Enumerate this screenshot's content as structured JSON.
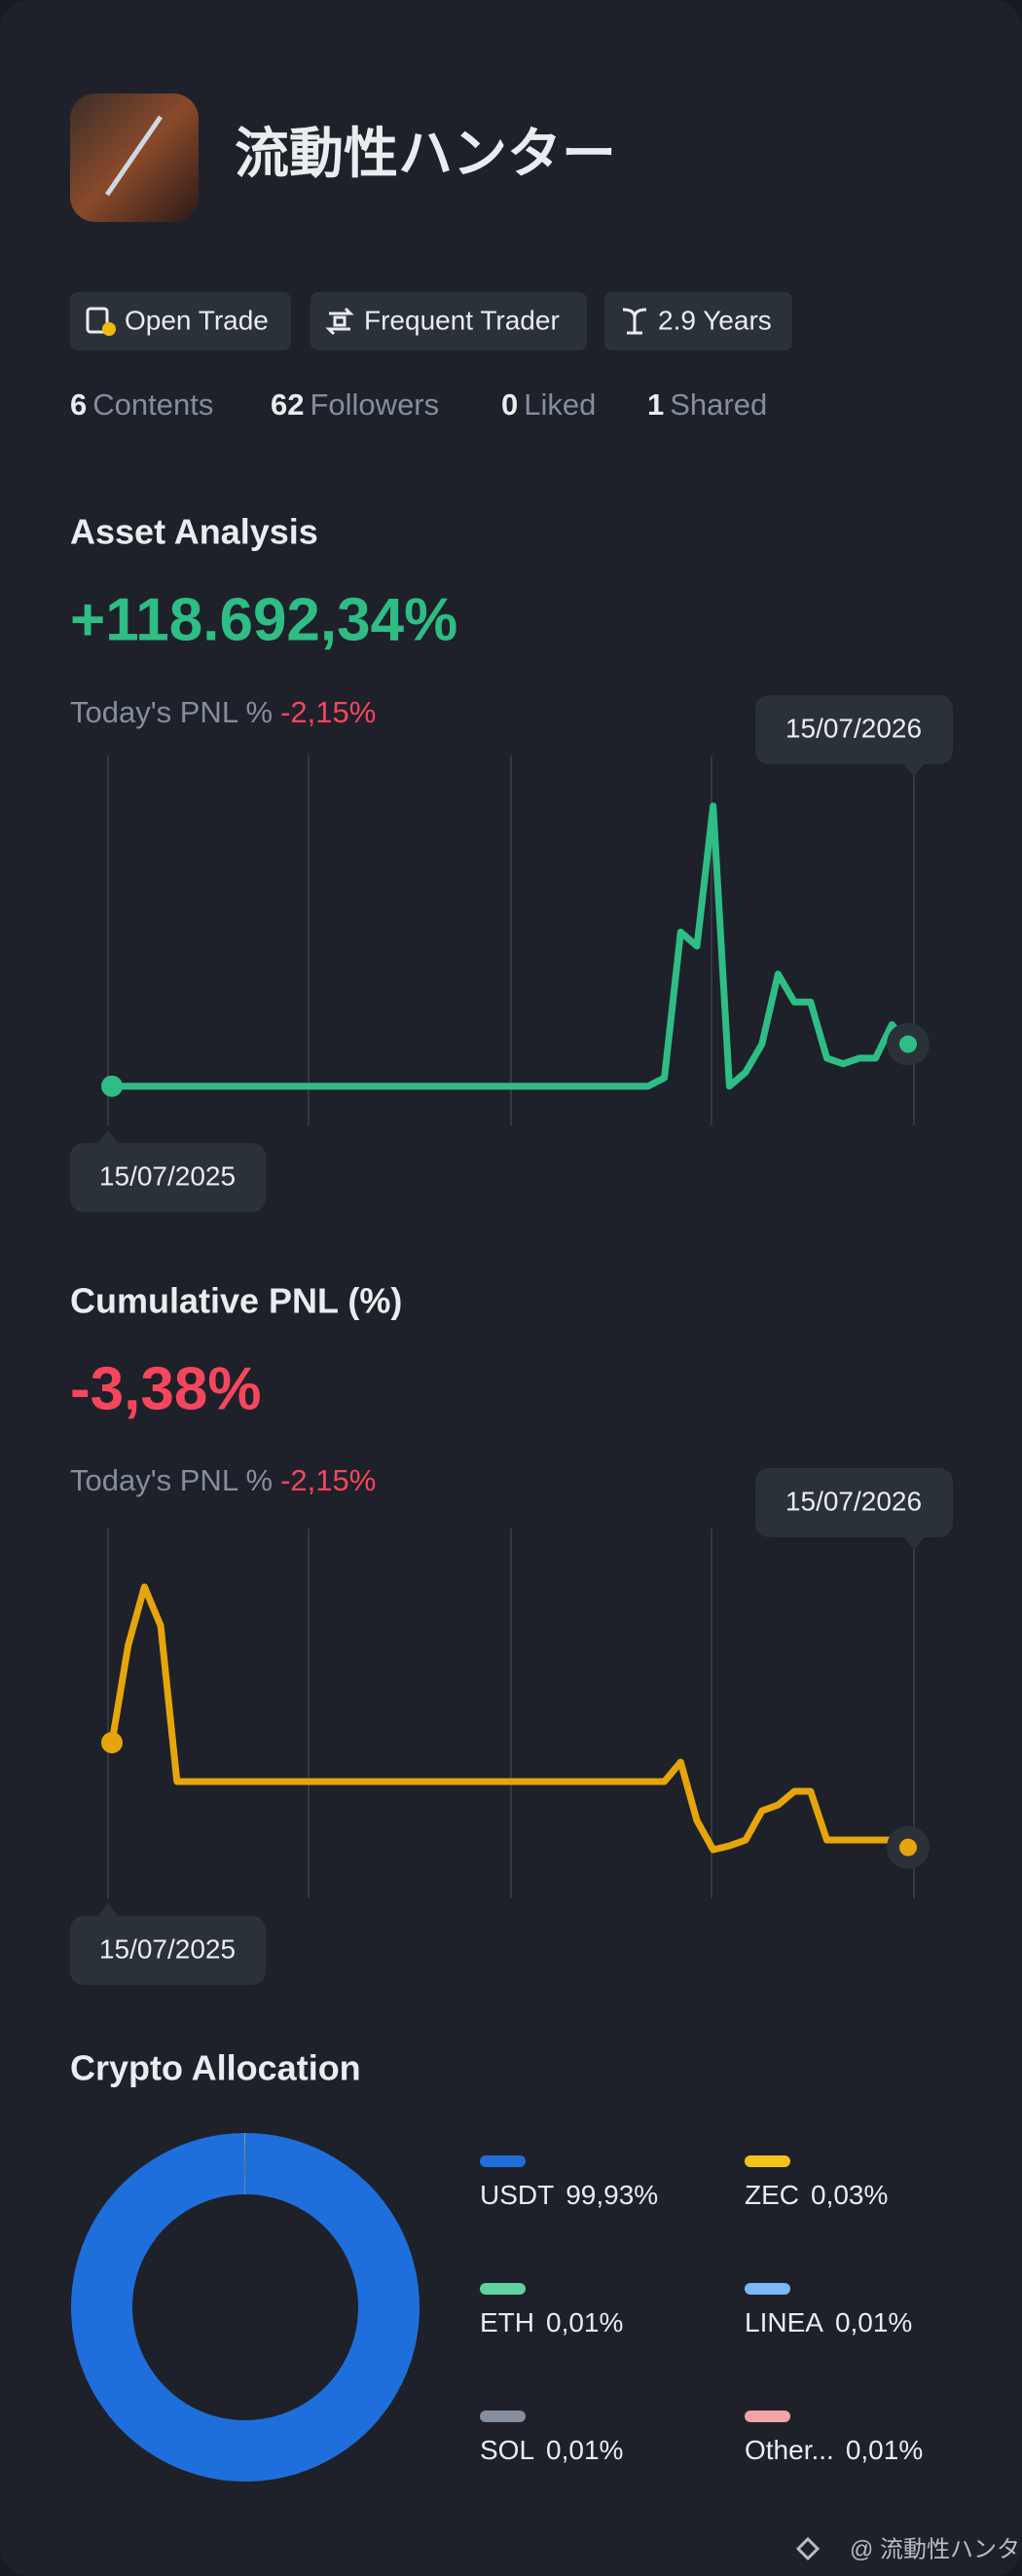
{
  "profile": {
    "name": "流動性ハンター",
    "tags": [
      "Open Trade",
      "Frequent Trader",
      "2.9 Years"
    ],
    "stats": [
      {
        "count": 6,
        "label": "Contents"
      },
      {
        "count": 62,
        "label": "Followers"
      },
      {
        "count": 0,
        "label": "Liked"
      },
      {
        "count": 1,
        "label": "Shared"
      }
    ]
  },
  "chart_data": [
    {
      "type": "line",
      "title": "Asset Analysis",
      "headline": "+118.692,34%",
      "today_label": "Today's PNL %",
      "today_value": "-2,15%",
      "start_label": "15/07/2025",
      "end_label": "15/07/2026",
      "color": "#2ebd85",
      "headline_color": "#2ebd85",
      "ylim": [
        -14,
        118
      ],
      "values": [
        0,
        0,
        0,
        0,
        0,
        0,
        0,
        0,
        0,
        0,
        0,
        0,
        0,
        0,
        0,
        0,
        0,
        0,
        0,
        0,
        0,
        0,
        0,
        0,
        0,
        0,
        0,
        0,
        0,
        0,
        0,
        0,
        0,
        0,
        3,
        55,
        50,
        100,
        0,
        5,
        15,
        40,
        30,
        30,
        10,
        8,
        10,
        10,
        22,
        15
      ]
    },
    {
      "type": "line",
      "title": "Cumulative PNL (%)",
      "headline": "-3,38%",
      "today_label": "Today's PNL %",
      "today_value": "-2,15%",
      "start_label": "15/07/2025",
      "end_label": "15/07/2026",
      "color": "#e6a50a",
      "headline_color": "#f6465d",
      "ylim": [
        -6,
        13
      ],
      "values": [
        2,
        7,
        10,
        8,
        0,
        0,
        0,
        0,
        0,
        0,
        0,
        0,
        0,
        0,
        0,
        0,
        0,
        0,
        0,
        0,
        0,
        0,
        0,
        0,
        0,
        0,
        0,
        0,
        0,
        0,
        0,
        0,
        0,
        0,
        0,
        1,
        -2,
        -3.5,
        -3.3,
        -3,
        -1.5,
        -1.2,
        -0.5,
        -0.5,
        -3,
        -3,
        -3,
        -3,
        -3,
        -3.38
      ]
    },
    {
      "type": "pie",
      "title": "Crypto Allocation",
      "categories": [
        "USDT",
        "ZEC",
        "ETH",
        "LINEA",
        "SOL",
        "Other..."
      ],
      "values": [
        99.93,
        0.03,
        0.01,
        0.01,
        0.01,
        0.01
      ],
      "value_labels": [
        "99,93%",
        "0,03%",
        "0,01%",
        "0,01%",
        "0,01%",
        "0,01%"
      ],
      "colors": [
        "#1e6fdb",
        "#f0c419",
        "#5fd3a0",
        "#7ab8f5",
        "#868e9c",
        "#f4a3a8"
      ]
    }
  ],
  "footer": "@ 流動性ハンター"
}
